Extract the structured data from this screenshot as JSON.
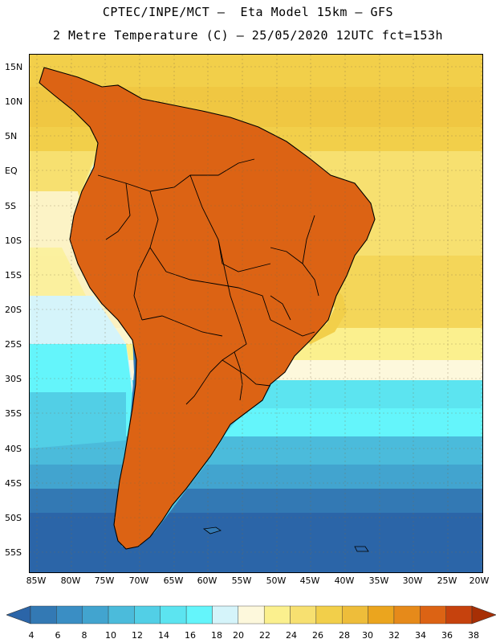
{
  "header": {
    "line1": "CPTEC/INPE/MCT –  Eta Model 15km – GFS",
    "line2": "2 Metre Temperature (C) – 25/05/2020 12UTC fct=153h"
  },
  "map": {
    "lat_labels": [
      "15N",
      "10N",
      "5N",
      "EQ",
      "5S",
      "10S",
      "15S",
      "20S",
      "25S",
      "30S",
      "35S",
      "40S",
      "45S",
      "50S",
      "55S"
    ],
    "lon_labels": [
      "85W",
      "80W",
      "75W",
      "70W",
      "65W",
      "60W",
      "55W",
      "50W",
      "45W",
      "40W",
      "35W",
      "30W",
      "25W",
      "20W"
    ]
  },
  "colorbar": {
    "labels": [
      "4",
      "6",
      "8",
      "10",
      "12",
      "14",
      "16",
      "18",
      "20",
      "22",
      "24",
      "26",
      "28",
      "30",
      "32",
      "34",
      "36",
      "38"
    ],
    "colors": [
      "#2b65a8",
      "#3379b4",
      "#3a8ec4",
      "#42a4cf",
      "#4bbbdb",
      "#52cfe6",
      "#5ce4f0",
      "#64f5fb",
      "#d5f4fa",
      "#fdf8dc",
      "#fbf08e",
      "#f7e070",
      "#f2cf4a",
      "#eebd3a",
      "#eba51e",
      "#e68a1a",
      "#dc6314",
      "#c6420d",
      "#a72f05"
    ]
  }
}
